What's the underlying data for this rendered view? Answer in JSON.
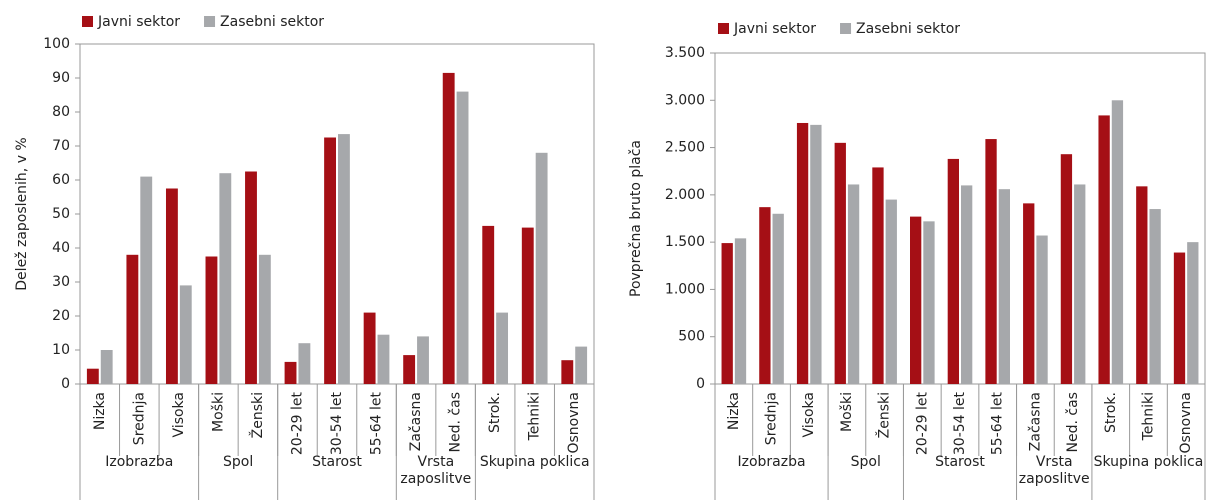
{
  "chart_data": [
    {
      "type": "bar",
      "ylabel": "Delež zaposlenih, v %",
      "groups": [
        {
          "label": "Izobrazba",
          "categories": [
            "Nizka",
            "Srednja",
            "Visoka"
          ]
        },
        {
          "label": "Spol",
          "categories": [
            "Moški",
            "Ženski"
          ]
        },
        {
          "label": "Starost",
          "categories": [
            "20-29 let",
            "30-54 let",
            "55-64 let"
          ]
        },
        {
          "label": "Vrsta zaposlitve",
          "categories": [
            "Začasna",
            "Ned. čas"
          ]
        },
        {
          "label": "Skupina poklica",
          "categories": [
            "Strok.",
            "Tehniki",
            "Osnovna"
          ]
        }
      ],
      "series": [
        {
          "name": "Javni sektor",
          "color": "#a50f15",
          "values": [
            4.5,
            38,
            57.5,
            37.5,
            62.5,
            6.5,
            72.5,
            21,
            8.5,
            91.5,
            46.5,
            46,
            7
          ]
        },
        {
          "name": "Zasebni sektor",
          "color": "#a6a8ab",
          "values": [
            10,
            61,
            29,
            62,
            38,
            12,
            73.5,
            14.5,
            14,
            86,
            21,
            68,
            11
          ]
        }
      ],
      "ylim": [
        0,
        100
      ],
      "yticks": [
        0,
        10,
        20,
        30,
        40,
        50,
        60,
        70,
        80,
        90,
        100
      ]
    },
    {
      "type": "bar",
      "ylabel": "Povprečna bruto plača",
      "groups": [
        {
          "label": "Izobrazba",
          "categories": [
            "Nizka",
            "Srednja",
            "Visoka"
          ]
        },
        {
          "label": "Spol",
          "categories": [
            "Moški",
            "Ženski"
          ]
        },
        {
          "label": "Starost",
          "categories": [
            "20-29 let",
            "30-54 let",
            "55-64 let"
          ]
        },
        {
          "label": "Vrsta zaposlitve",
          "categories": [
            "Začasna",
            "Ned. čas"
          ]
        },
        {
          "label": "Skupina poklica",
          "categories": [
            "Strok.",
            "Tehniki",
            "Osnovna"
          ]
        }
      ],
      "series": [
        {
          "name": "Javni sektor",
          "color": "#a50f15",
          "values": [
            1490,
            1870,
            2760,
            2550,
            2290,
            1770,
            2380,
            2590,
            1910,
            2430,
            2840,
            2090,
            1390
          ]
        },
        {
          "name": "Zasebni sektor",
          "color": "#a6a8ab",
          "values": [
            1540,
            1800,
            2740,
            2110,
            1950,
            1720,
            2100,
            2060,
            1570,
            2110,
            3000,
            1850,
            1500
          ]
        }
      ],
      "ylim": [
        0,
        3500
      ],
      "yticks": [
        0,
        {
          "value": 500,
          "label": "500"
        },
        {
          "value": 1000,
          "label": "1.000"
        },
        {
          "value": 1500,
          "label": "1.500"
        },
        {
          "value": 2000,
          "label": "2.000"
        },
        {
          "value": 2500,
          "label": "2.500"
        },
        {
          "value": 3000,
          "label": "3.000"
        },
        {
          "value": 3500,
          "label": "3.500"
        }
      ]
    }
  ]
}
